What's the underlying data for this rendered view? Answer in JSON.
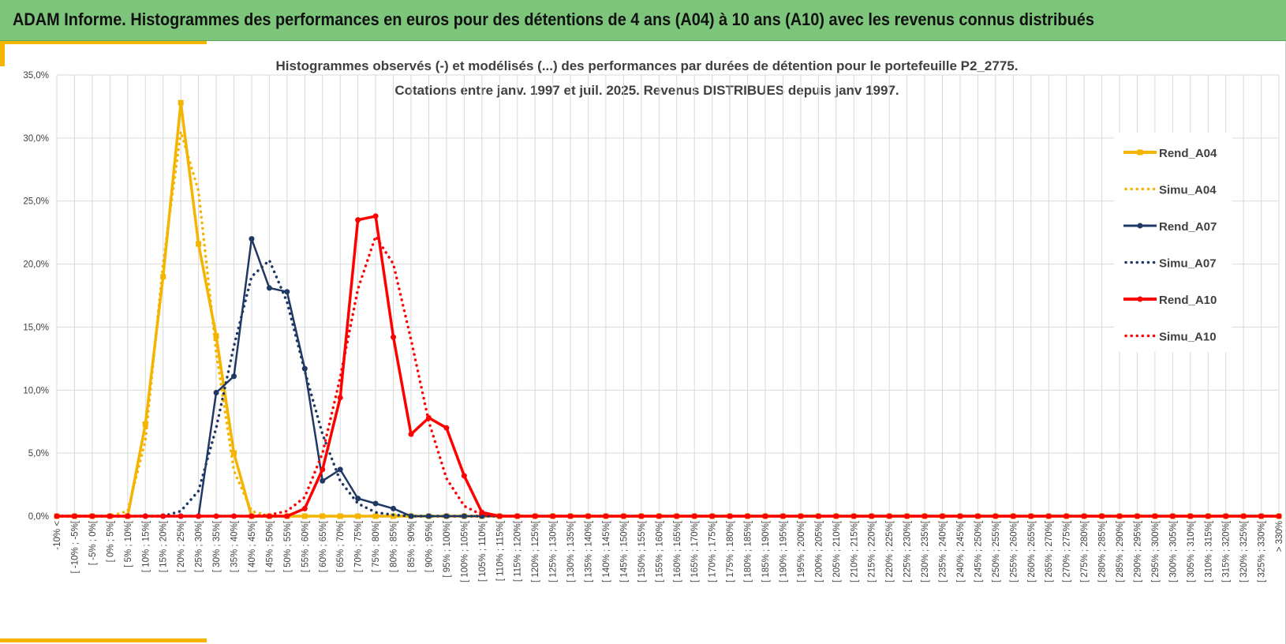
{
  "banner": {
    "title": "ADAM Informe. Histogrammes des performances en euros pour des détentions de 4 ans (A04) à 10 ans (A10) avec les revenus connus distribués"
  },
  "colors": {
    "banner_bg": "#7dc57b",
    "accent": "#f4b400",
    "A04": "#f4b400",
    "A07": "#1f3864",
    "A10": "#ff0000",
    "grid": "#d9d9d9"
  },
  "chart_data": {
    "type": "line",
    "title_lines": [
      "Histogrammes observés (-) et modélisés (...) des performances par durées de détention pour le portefeuille P2_2775.",
      "Cotations entre janv. 1997 et juil. 2025. Revenus DISTRIBUES depuis janv 1997."
    ],
    "xlabel": "",
    "ylabel": "",
    "ylim": [
      0,
      0.35
    ],
    "y_ticks": [
      "0,0%",
      "5,0%",
      "10,0%",
      "15,0%",
      "20,0%",
      "25,0%",
      "30,0%",
      "35,0%"
    ],
    "grid": true,
    "legend_position": "right",
    "categories": [
      "-10% <",
      "[ -10% ; -5%[",
      "[ -5% ; 0%[",
      "[ 0% ; 5%[",
      "[ 5% ; 10%[",
      "[ 10% ; 15%[",
      "[ 15% ; 20%[",
      "[ 20% ; 25%[",
      "[ 25% ; 30%[",
      "[ 30% ; 35%[",
      "[ 35% ; 40%[",
      "[ 40% ; 45%[",
      "[ 45% ; 50%[",
      "[ 50% ; 55%[",
      "[ 55% ; 60%[",
      "[ 60% ; 65%[",
      "[ 65% ; 70%[",
      "[ 70% ; 75%[",
      "[ 75% ; 80%[",
      "[ 80% ; 85%[",
      "[ 85% ; 90%[",
      "[ 90% ; 95%[",
      "[ 95% ; 100%[",
      "[ 100% ; 105%[",
      "[ 105% ; 110%[",
      "[ 110% ; 115%[",
      "[ 115% ; 120%[",
      "[ 120% ; 125%[",
      "[ 125% ; 130%[",
      "[ 130% ; 135%[",
      "[ 135% ; 140%[",
      "[ 140% ; 145%[",
      "[ 145% ; 150%[",
      "[ 150% ; 155%[",
      "[ 155% ; 160%[",
      "[ 160% ; 165%[",
      "[ 165% ; 170%[",
      "[ 170% ; 175%[",
      "[ 175% ; 180%[",
      "[ 180% ; 185%[",
      "[ 185% ; 190%[",
      "[ 190% ; 195%[",
      "[ 195% ; 200%[",
      "[ 200% ; 205%[",
      "[ 205% ; 210%[",
      "[ 210% ; 215%[",
      "[ 215% ; 220%[",
      "[ 220% ; 225%[",
      "[ 225% ; 230%[",
      "[ 230% ; 235%[",
      "[ 235% ; 240%[",
      "[ 240% ; 245%[",
      "[ 245% ; 250%[",
      "[ 250% ; 255%[",
      "[ 255% ; 260%[",
      "[ 260% ; 265%[",
      "[ 265% ; 270%[",
      "[ 270% ; 275%[",
      "[ 275% ; 280%[",
      "[ 280% ; 285%[",
      "[ 285% ; 290%[",
      "[ 290% ; 295%[",
      "[ 295% ; 300%[",
      "[ 300% ; 305%[",
      "[ 305% ; 310%[",
      "[ 310% ; 315%[",
      "[ 315% ; 320%[",
      "[ 320% ; 325%[",
      "[ 325% ; 330%[",
      "> 330%"
    ],
    "series": [
      {
        "name": "Rend_A04",
        "key": "A04",
        "style": "solid",
        "marker": "square",
        "values": [
          0,
          0,
          0,
          0,
          0,
          0.073,
          0.19,
          0.328,
          0.216,
          0.143,
          0.05,
          0,
          0,
          0,
          0,
          0,
          0,
          0,
          0,
          0,
          0,
          0,
          0,
          0,
          0,
          0,
          0,
          0,
          0,
          0,
          0,
          0,
          0,
          0,
          0,
          0,
          0,
          0,
          0,
          0,
          0,
          0,
          0,
          0,
          0,
          0,
          0,
          0,
          0,
          0,
          0,
          0,
          0,
          0,
          0,
          0,
          0,
          0,
          0,
          0,
          0,
          0,
          0,
          0,
          0,
          0,
          0,
          0,
          0,
          0
        ]
      },
      {
        "name": "Simu_A04",
        "key": "A04",
        "style": "dotted",
        "marker": "none",
        "values": [
          0,
          0,
          0,
          0,
          0.004,
          0.06,
          0.2,
          0.305,
          0.258,
          0.13,
          0.036,
          0.004,
          0,
          0,
          0,
          0,
          0,
          0,
          0,
          0,
          0,
          0,
          0,
          0,
          0,
          0,
          0,
          0,
          0,
          0,
          0,
          0,
          0,
          0,
          0,
          0,
          0,
          0,
          0,
          0,
          0,
          0,
          0,
          0,
          0,
          0,
          0,
          0,
          0,
          0,
          0,
          0,
          0,
          0,
          0,
          0,
          0,
          0,
          0,
          0,
          0,
          0,
          0,
          0,
          0,
          0,
          0,
          0,
          0,
          0
        ]
      },
      {
        "name": "Rend_A07",
        "key": "A07",
        "style": "solid",
        "marker": "circle",
        "values": [
          0,
          0,
          0,
          0,
          0,
          0,
          0,
          0,
          0,
          0.098,
          0.111,
          0.22,
          0.181,
          0.178,
          0.117,
          0.028,
          0.037,
          0.014,
          0.01,
          0.006,
          0,
          0,
          0,
          0,
          0,
          0,
          0,
          0,
          0,
          0,
          0,
          0,
          0,
          0,
          0,
          0,
          0,
          0,
          0,
          0,
          0,
          0,
          0,
          0,
          0,
          0,
          0,
          0,
          0,
          0,
          0,
          0,
          0,
          0,
          0,
          0,
          0,
          0,
          0,
          0,
          0,
          0,
          0,
          0,
          0,
          0,
          0,
          0,
          0,
          0
        ]
      },
      {
        "name": "Simu_A07",
        "key": "A07",
        "style": "dotted",
        "marker": "none",
        "values": [
          0,
          0,
          0,
          0,
          0,
          0,
          0,
          0.004,
          0.02,
          0.07,
          0.135,
          0.19,
          0.203,
          0.17,
          0.115,
          0.065,
          0.028,
          0.01,
          0.003,
          0.001,
          0,
          0,
          0,
          0,
          0,
          0,
          0,
          0,
          0,
          0,
          0,
          0,
          0,
          0,
          0,
          0,
          0,
          0,
          0,
          0,
          0,
          0,
          0,
          0,
          0,
          0,
          0,
          0,
          0,
          0,
          0,
          0,
          0,
          0,
          0,
          0,
          0,
          0,
          0,
          0,
          0,
          0,
          0,
          0,
          0,
          0,
          0,
          0,
          0,
          0
        ]
      },
      {
        "name": "Rend_A10",
        "key": "A10",
        "style": "solid",
        "marker": "circle",
        "values": [
          0,
          0,
          0,
          0,
          0,
          0,
          0,
          0,
          0,
          0,
          0,
          0,
          0,
          0,
          0.006,
          0.037,
          0.094,
          0.235,
          0.238,
          0.142,
          0.065,
          0.078,
          0.07,
          0.032,
          0.003,
          0,
          0,
          0,
          0,
          0,
          0,
          0,
          0,
          0,
          0,
          0,
          0,
          0,
          0,
          0,
          0,
          0,
          0,
          0,
          0,
          0,
          0,
          0,
          0,
          0,
          0,
          0,
          0,
          0,
          0,
          0,
          0,
          0,
          0,
          0,
          0,
          0,
          0,
          0,
          0,
          0,
          0,
          0,
          0,
          0
        ]
      },
      {
        "name": "Simu_A10",
        "key": "A10",
        "style": "dotted",
        "marker": "none",
        "values": [
          0,
          0,
          0,
          0,
          0,
          0,
          0,
          0,
          0,
          0,
          0,
          0,
          0.001,
          0.004,
          0.015,
          0.05,
          0.11,
          0.18,
          0.222,
          0.2,
          0.14,
          0.075,
          0.03,
          0.008,
          0.001,
          0,
          0,
          0,
          0,
          0,
          0,
          0,
          0,
          0,
          0,
          0,
          0,
          0,
          0,
          0,
          0,
          0,
          0,
          0,
          0,
          0,
          0,
          0,
          0,
          0,
          0,
          0,
          0,
          0,
          0,
          0,
          0,
          0,
          0,
          0,
          0,
          0,
          0,
          0,
          0,
          0,
          0,
          0,
          0,
          0
        ]
      }
    ]
  }
}
